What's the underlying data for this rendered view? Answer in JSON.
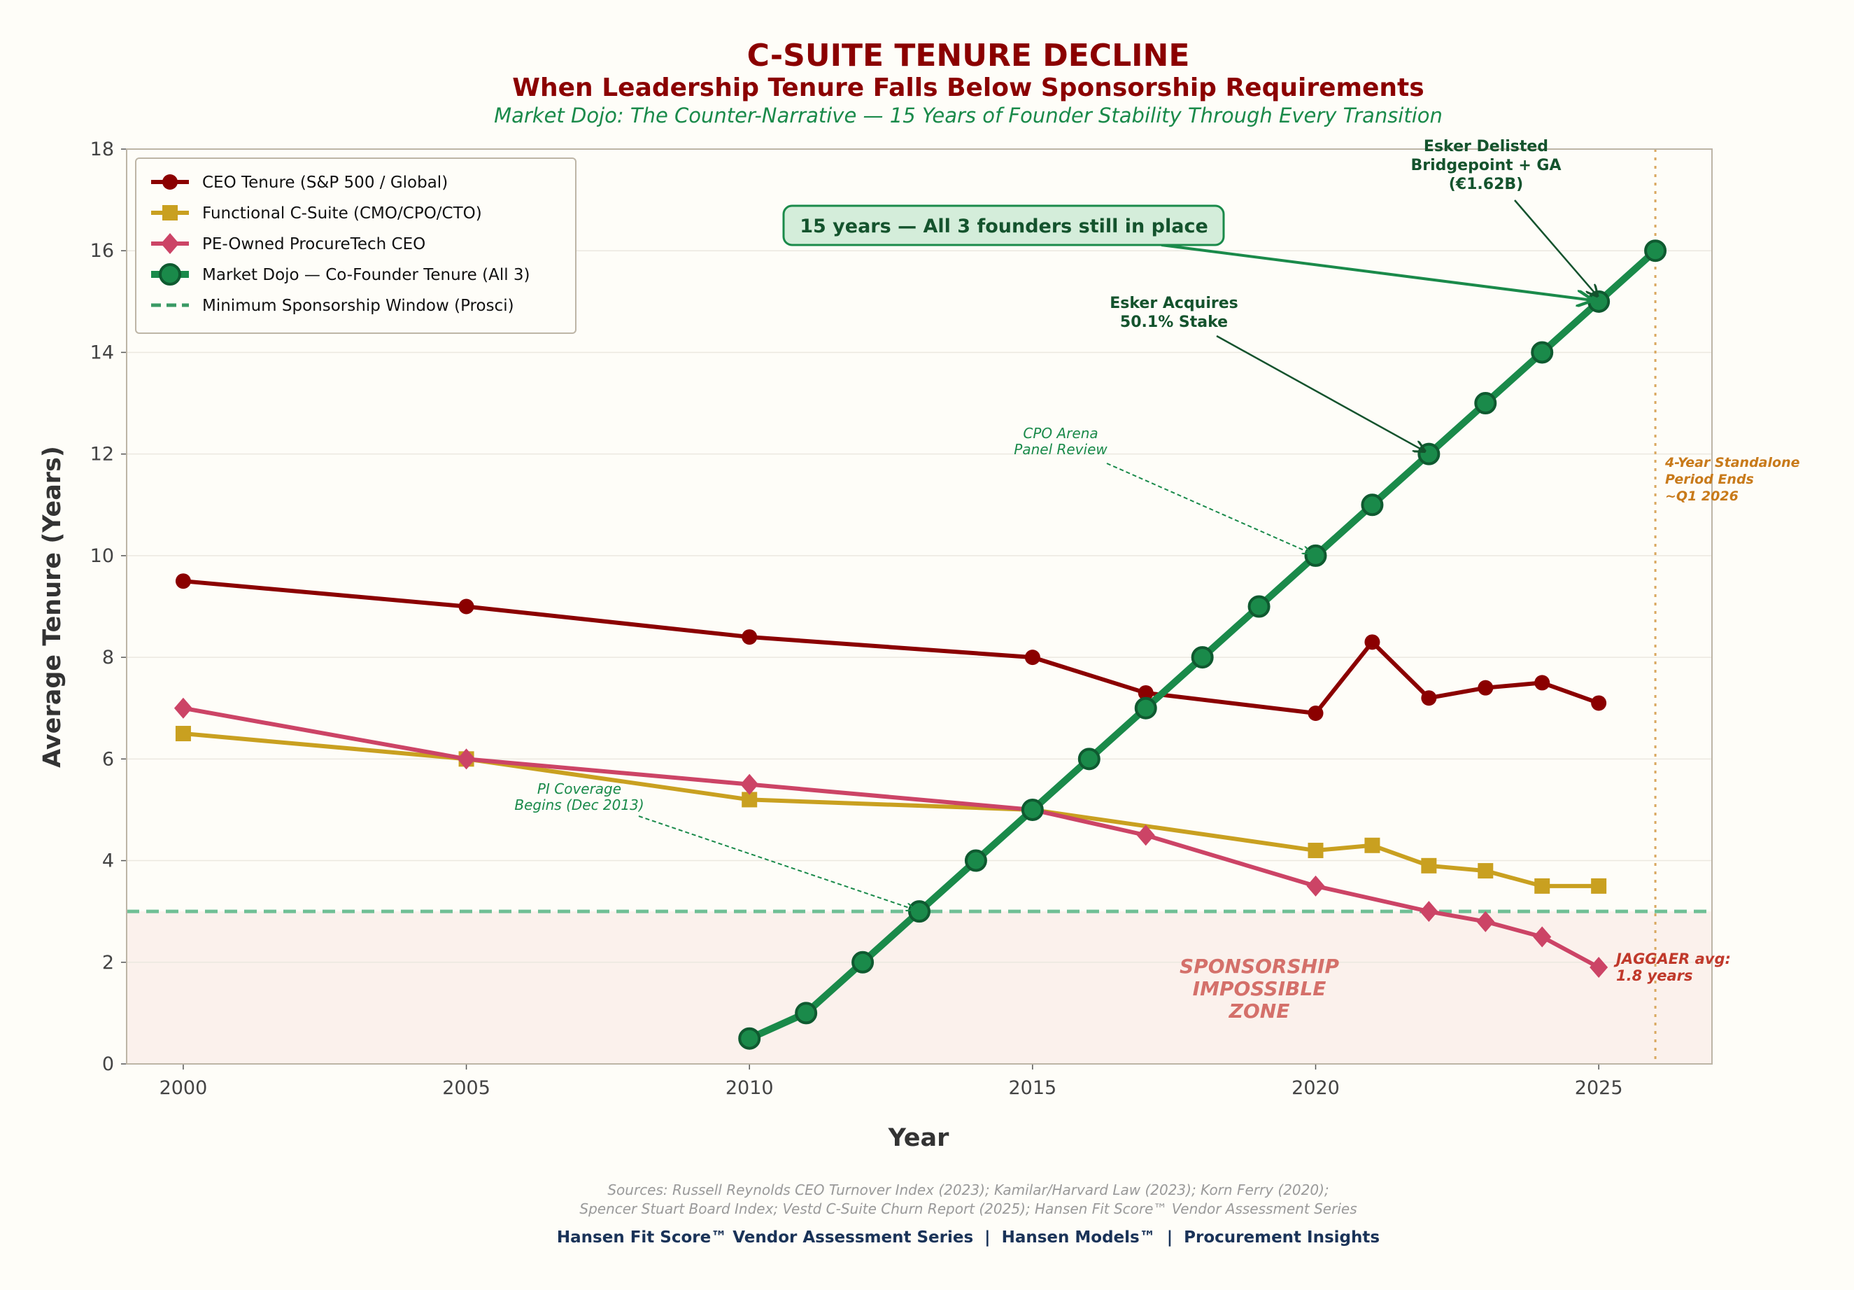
{
  "title": "C-SUITE TENURE DECLINE",
  "subtitle": "When Leadership Tenure Falls Below Sponsorship Requirements",
  "tagline": "Market Dojo: The Counter-Narrative — 15 Years of Founder Stability Through Every Transition",
  "colors": {
    "ceo": "#8b0000",
    "functional": "#c9a020",
    "pe": "#cc4466",
    "dojo": "#1a8a4a",
    "threshold": "#6fbf95",
    "zone": "#fbf1ec",
    "orange": "#c87a1a",
    "navy": "#1a3358"
  },
  "chart_data": {
    "type": "line",
    "xlabel": "Year",
    "ylabel": "Average Tenure (Years)",
    "xlim": [
      1999,
      2027
    ],
    "ylim": [
      0,
      18
    ],
    "xticks": [
      2000,
      2005,
      2010,
      2015,
      2020,
      2025
    ],
    "yticks": [
      0,
      2,
      4,
      6,
      8,
      10,
      12,
      14,
      16,
      18
    ],
    "grid": "horizontal",
    "legend_position": "top-left",
    "series": [
      {
        "key": "ceo",
        "name": "CEO Tenure (S&P 500 / Global)",
        "marker": "circle",
        "x": [
          2000,
          2005,
          2010,
          2015,
          2017,
          2020,
          2021,
          2022,
          2023,
          2024,
          2025
        ],
        "y": [
          9.5,
          9.0,
          8.4,
          8.0,
          7.3,
          6.9,
          8.3,
          7.2,
          7.4,
          7.5,
          7.1
        ]
      },
      {
        "key": "functional",
        "name": "Functional C-Suite (CMO/CPO/CTO)",
        "marker": "square",
        "x": [
          2000,
          2005,
          2010,
          2015,
          2020,
          2021,
          2022,
          2023,
          2024,
          2025
        ],
        "y": [
          6.5,
          6.0,
          5.2,
          5.0,
          4.2,
          4.3,
          3.9,
          3.8,
          3.5,
          3.5
        ]
      },
      {
        "key": "pe",
        "name": "PE-Owned ProcureTech CEO",
        "marker": "diamond",
        "x": [
          2000,
          2005,
          2010,
          2015,
          2017,
          2020,
          2022,
          2023,
          2024,
          2025
        ],
        "y": [
          7.0,
          6.0,
          5.5,
          5.0,
          4.5,
          3.5,
          3.0,
          2.8,
          2.5,
          1.9
        ]
      },
      {
        "key": "dojo",
        "name": "Market Dojo — Co-Founder Tenure (All 3)",
        "marker": "circle-large",
        "x": [
          2010,
          2011,
          2012,
          2013,
          2014,
          2015,
          2016,
          2017,
          2018,
          2019,
          2020,
          2021,
          2022,
          2023,
          2024,
          2025,
          2026
        ],
        "y": [
          0.5,
          1,
          2,
          3,
          4,
          5,
          6,
          7,
          8,
          9,
          10,
          11,
          12,
          13,
          14,
          15,
          16
        ]
      }
    ],
    "threshold": {
      "name": "Minimum Sponsorship Window (Prosci)",
      "y": 3
    },
    "vline": {
      "x": 2026,
      "label": [
        "4-Year Standalone",
        "Period Ends",
        "~Q1 2026"
      ]
    },
    "zone_label": [
      "SPONSORSHIP",
      "IMPOSSIBLE",
      "ZONE"
    ],
    "annotations": [
      {
        "id": "callout",
        "text": [
          "15 years — All 3 founders still in place"
        ],
        "target": [
          2025,
          15
        ]
      },
      {
        "id": "delisted",
        "text": [
          "Esker Delisted",
          "Bridgepoint + GA",
          "(€1.62B)"
        ],
        "target": [
          2025,
          15
        ]
      },
      {
        "id": "acquires",
        "text": [
          "Esker Acquires",
          "50.1% Stake"
        ],
        "target": [
          2022,
          12
        ]
      },
      {
        "id": "cpo",
        "text": [
          "CPO Arena",
          "Panel Review"
        ],
        "target": [
          2020,
          10
        ]
      },
      {
        "id": "pi",
        "text": [
          "PI Coverage",
          "Begins (Dec 2013)"
        ],
        "target": [
          2013,
          3
        ]
      },
      {
        "id": "jaggaer",
        "text": [
          "JAGGAER avg:",
          "1.8 years"
        ],
        "target": [
          2025,
          1.9
        ]
      }
    ]
  },
  "sources": [
    "Sources: Russell Reynolds CEO Turnover Index (2023); Kamilar/Harvard Law (2023); Korn Ferry (2020);",
    "Spencer Stuart Board Index; Vestd C-Suite Churn Report (2025); Hansen Fit Score™ Vendor Assessment Series"
  ],
  "footer": "Hansen Fit Score™ Vendor Assessment Series  |  Hansen Models™  |  Procurement Insights"
}
